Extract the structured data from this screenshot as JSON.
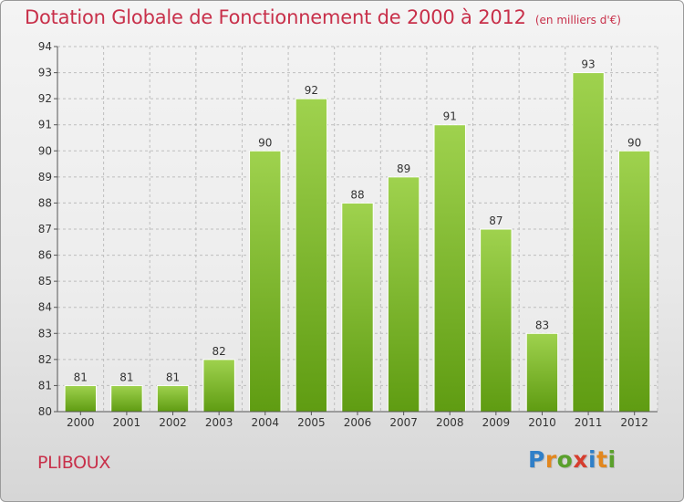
{
  "title": "Dotation Globale de Fonctionnement de 2000 à 2012",
  "subtitle": "(en milliers d'€)",
  "commune": "PLIBOUX",
  "logo": {
    "text": "Proxiti",
    "letters": [
      {
        "ch": "P",
        "color": "#2f7fc8"
      },
      {
        "ch": "r",
        "color": "#e2871e"
      },
      {
        "ch": "o",
        "color": "#5aa02c"
      },
      {
        "ch": "x",
        "color": "#d63d2e"
      },
      {
        "ch": "i",
        "color": "#2f7fc8"
      },
      {
        "ch": "t",
        "color": "#e2871e"
      },
      {
        "ch": "i",
        "color": "#5aa02c"
      }
    ]
  },
  "colors": {
    "accent": "#c8304a",
    "bar_light": "#9fd24e",
    "bar_dark": "#5f9c12",
    "grid": "#bdbdbd",
    "axis_text": "#333333"
  },
  "chart_data": {
    "type": "bar",
    "categories": [
      "2000",
      "2001",
      "2002",
      "2003",
      "2004",
      "2005",
      "2006",
      "2007",
      "2008",
      "2009",
      "2010",
      "2011",
      "2012"
    ],
    "values": [
      81,
      81,
      81,
      82,
      90,
      92,
      88,
      89,
      91,
      87,
      83,
      93,
      90
    ],
    "data_labels": [
      "81",
      "81",
      "81",
      "82",
      "90",
      "92",
      "88",
      "89",
      "91",
      "87",
      "83",
      "93",
      "90"
    ],
    "ylim": [
      80,
      94
    ],
    "yticks": [
      80,
      81,
      82,
      83,
      84,
      85,
      86,
      87,
      88,
      89,
      90,
      91,
      92,
      93,
      94
    ],
    "ytick_labels": [
      "80",
      "81",
      "82",
      "83",
      "84",
      "85",
      "86",
      "87",
      "88",
      "89",
      "90",
      "91",
      "92",
      "93",
      "94"
    ],
    "grid": true,
    "xlabel": "",
    "ylabel": ""
  }
}
